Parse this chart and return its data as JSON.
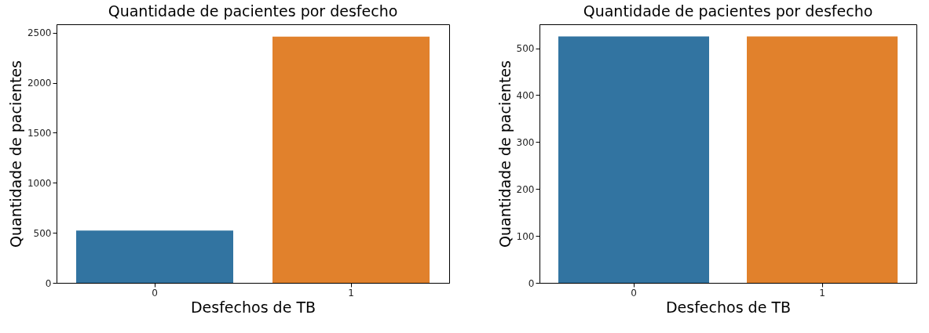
{
  "chart_data": [
    {
      "type": "bar",
      "title": "Quantidade de pacientes por desfecho",
      "xlabel": "Desfechos de TB",
      "ylabel": "Quantidade de pacientes",
      "categories": [
        "0",
        "1"
      ],
      "values": [
        523,
        2461
      ],
      "colors": [
        "#3274a1",
        "#e1812c"
      ],
      "ylim": [
        0,
        2584
      ],
      "yticks": [
        0,
        500,
        1000,
        1500,
        2000,
        2500
      ]
    },
    {
      "type": "bar",
      "title": "Quantidade de pacientes por desfecho",
      "xlabel": "Desfechos de TB",
      "ylabel": "Quantidade de pacientes",
      "categories": [
        "0",
        "1"
      ],
      "values": [
        525,
        525
      ],
      "colors": [
        "#3274a1",
        "#e1812c"
      ],
      "ylim": [
        0,
        551
      ],
      "yticks": [
        0,
        100,
        200,
        300,
        400,
        500
      ]
    }
  ]
}
